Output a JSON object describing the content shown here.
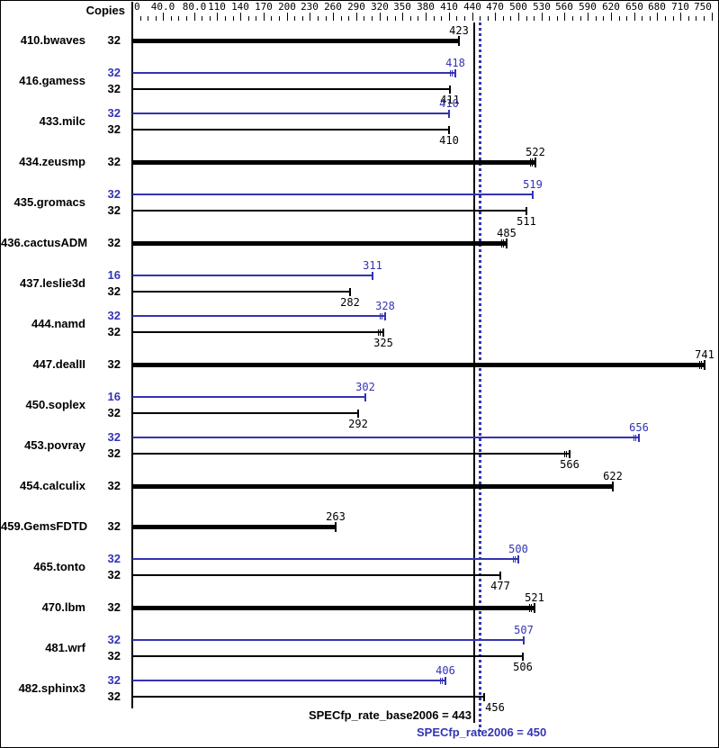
{
  "header": {
    "copies_label": "Copies"
  },
  "colors": {
    "peak": "#3333b3",
    "base": "#000000",
    "background": "#ffffff",
    "border": "#000000"
  },
  "summary": {
    "base_label": "SPECfp_rate_base2006 = 443",
    "peak_label": "SPECfp_rate2006 = 450"
  },
  "chart_data": {
    "type": "bar",
    "orientation": "horizontal",
    "legend": "blue thin bars = peak result, black thin bars = base result, thick black bars = base (peak equals base), vertical solid line = base metric, vertical dotted line = peak metric",
    "x_axis": {
      "ticks": [
        {
          "value": 0,
          "label": "0"
        },
        {
          "value": 40,
          "label": "40.0"
        },
        {
          "value": 80,
          "label": "80.0"
        },
        {
          "value": 110,
          "label": "110"
        },
        {
          "value": 140,
          "label": "140"
        },
        {
          "value": 170,
          "label": "170"
        },
        {
          "value": 200,
          "label": "200"
        },
        {
          "value": 230,
          "label": "230"
        },
        {
          "value": 260,
          "label": "260"
        },
        {
          "value": 290,
          "label": "290"
        },
        {
          "value": 320,
          "label": "320"
        },
        {
          "value": 350,
          "label": "350"
        },
        {
          "value": 380,
          "label": "380"
        },
        {
          "value": 410,
          "label": "410"
        },
        {
          "value": 440,
          "label": "440"
        },
        {
          "value": 470,
          "label": "470"
        },
        {
          "value": 500,
          "label": "500"
        },
        {
          "value": 530,
          "label": "530"
        },
        {
          "value": 560,
          "label": "560"
        },
        {
          "value": 590,
          "label": "590"
        },
        {
          "value": 620,
          "label": "620"
        },
        {
          "value": 650,
          "label": "650"
        },
        {
          "value": 680,
          "label": "680"
        },
        {
          "value": 710,
          "label": "710"
        },
        {
          "value": 750,
          "label": "750"
        }
      ],
      "minor_step": 10,
      "max": 760
    },
    "reference_lines": [
      {
        "name": "SPECfp_rate_base2006",
        "value": 443,
        "style": "solid",
        "color": "#000000"
      },
      {
        "name": "SPECfp_rate2006",
        "value": 450,
        "style": "dotted",
        "color": "#3333b3"
      }
    ],
    "benchmarks": [
      {
        "name": "410.bwaves",
        "bars": [
          {
            "role": "single",
            "copies": 32,
            "value": 423,
            "err": false
          }
        ]
      },
      {
        "name": "416.gamess",
        "bars": [
          {
            "role": "peak",
            "copies": 32,
            "value": 418,
            "err": true
          },
          {
            "role": "base",
            "copies": 32,
            "value": 411,
            "err": false
          }
        ]
      },
      {
        "name": "433.milc",
        "bars": [
          {
            "role": "peak",
            "copies": 32,
            "value": 410,
            "err": false
          },
          {
            "role": "base",
            "copies": 32,
            "value": 410,
            "err": false
          }
        ]
      },
      {
        "name": "434.zeusmp",
        "bars": [
          {
            "role": "single",
            "copies": 32,
            "value": 522,
            "err": true
          }
        ]
      },
      {
        "name": "435.gromacs",
        "bars": [
          {
            "role": "peak",
            "copies": 32,
            "value": 519,
            "err": false
          },
          {
            "role": "base",
            "copies": 32,
            "value": 511,
            "err": false
          }
        ]
      },
      {
        "name": "436.cactusADM",
        "bars": [
          {
            "role": "single",
            "copies": 32,
            "value": 485,
            "err": true
          }
        ]
      },
      {
        "name": "437.leslie3d",
        "bars": [
          {
            "role": "peak",
            "copies": 16,
            "value": 311,
            "err": false
          },
          {
            "role": "base",
            "copies": 32,
            "value": 282,
            "err": false
          }
        ]
      },
      {
        "name": "444.namd",
        "bars": [
          {
            "role": "peak",
            "copies": 32,
            "value": 328,
            "err": true
          },
          {
            "role": "base",
            "copies": 32,
            "value": 325,
            "err": true
          }
        ]
      },
      {
        "name": "447.dealII",
        "bars": [
          {
            "role": "single",
            "copies": 32,
            "value": 741,
            "err": true
          }
        ]
      },
      {
        "name": "450.soplex",
        "bars": [
          {
            "role": "peak",
            "copies": 16,
            "value": 302,
            "err": false
          },
          {
            "role": "base",
            "copies": 32,
            "value": 292,
            "err": false
          }
        ]
      },
      {
        "name": "453.povray",
        "bars": [
          {
            "role": "peak",
            "copies": 32,
            "value": 656,
            "err": true
          },
          {
            "role": "base",
            "copies": 32,
            "value": 566,
            "err": true
          }
        ]
      },
      {
        "name": "454.calculix",
        "bars": [
          {
            "role": "single",
            "copies": 32,
            "value": 622,
            "err": false
          }
        ]
      },
      {
        "name": "459.GemsFDTD",
        "bars": [
          {
            "role": "single",
            "copies": 32,
            "value": 263,
            "err": false
          }
        ]
      },
      {
        "name": "465.tonto",
        "bars": [
          {
            "role": "peak",
            "copies": 32,
            "value": 500,
            "err": true
          },
          {
            "role": "base",
            "copies": 32,
            "value": 477,
            "err": false
          }
        ]
      },
      {
        "name": "470.lbm",
        "bars": [
          {
            "role": "single",
            "copies": 32,
            "value": 521,
            "err": true
          }
        ]
      },
      {
        "name": "481.wrf",
        "bars": [
          {
            "role": "peak",
            "copies": 32,
            "value": 507,
            "err": false
          },
          {
            "role": "base",
            "copies": 32,
            "value": 506,
            "err": false
          }
        ]
      },
      {
        "name": "482.sphinx3",
        "bars": [
          {
            "role": "peak",
            "copies": 32,
            "value": 406,
            "err": true
          },
          {
            "role": "base",
            "copies": 32,
            "value": 456,
            "err": false,
            "label_dx": 12
          }
        ]
      }
    ]
  }
}
